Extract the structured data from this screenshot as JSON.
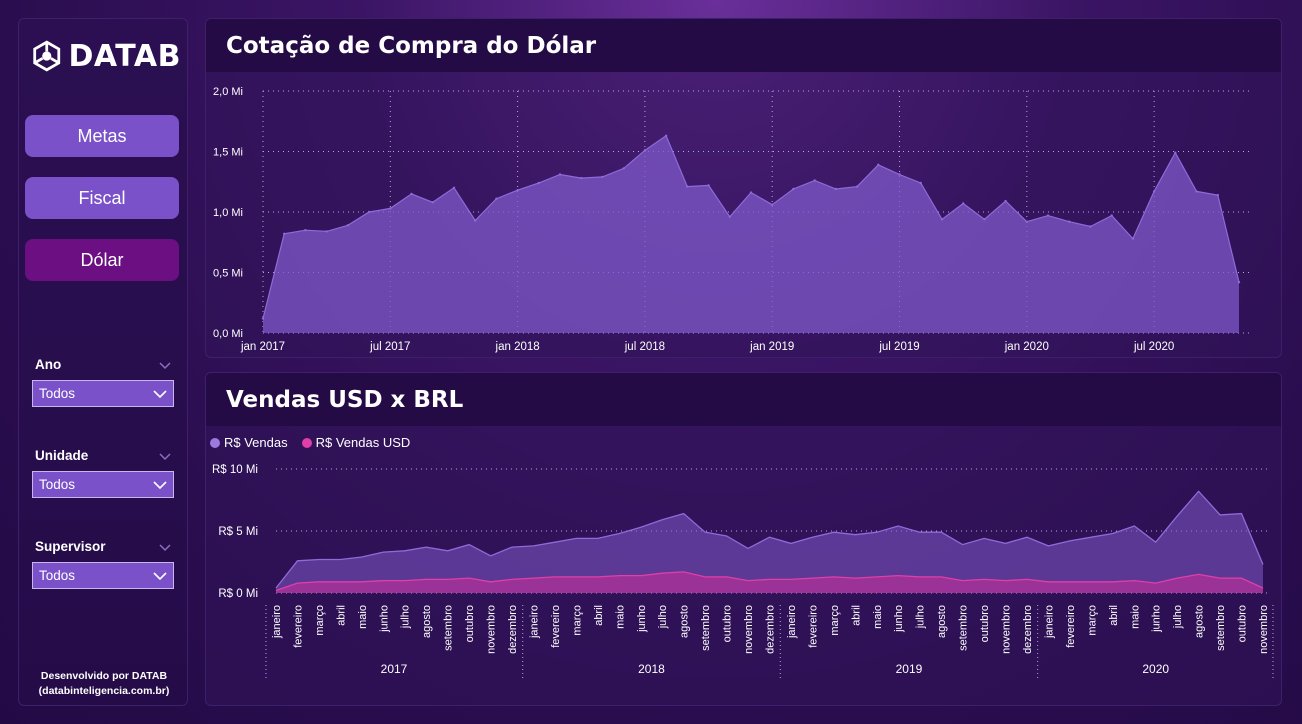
{
  "colors": {
    "area_rs": "#7f5ac9",
    "area_usd": "#c42f9a",
    "btn": "#7a51c9",
    "btn_active": "#6b0f82"
  },
  "logo": {
    "text": "DATAB"
  },
  "nav": {
    "metas": "Metas",
    "fiscal": "Fiscal",
    "dolar": "Dólar"
  },
  "filters": {
    "ano": {
      "label": "Ano",
      "value": "Todos"
    },
    "unidade": {
      "label": "Unidade",
      "value": "Todos"
    },
    "supervisor": {
      "label": "Supervisor",
      "value": "Todos"
    }
  },
  "credit": {
    "line1": "Desenvolvido por DATAB",
    "line2": "(databinteligencia.com.br)"
  },
  "chart1": {
    "title": "Cotação de Compra do Dólar"
  },
  "chart2": {
    "title": "Vendas USD x BRL"
  },
  "chart_data": [
    {
      "type": "area",
      "title": "Cotação de Compra do Dólar",
      "y_ticks": [
        "2,0 Mi",
        "1,5 Mi",
        "1,0 Mi",
        "0,5 Mi",
        "0,0 Mi"
      ],
      "ylim": [
        0,
        2.0
      ],
      "x_ticks": [
        "jan 2017",
        "jul 2017",
        "jan 2018",
        "jul 2018",
        "jan 2019",
        "jul 2019",
        "jan 2020",
        "jul 2020"
      ],
      "grid": true,
      "values": [
        0.12,
        0.82,
        0.85,
        0.84,
        0.89,
        1.0,
        1.03,
        1.15,
        1.08,
        1.2,
        0.93,
        1.11,
        1.18,
        1.24,
        1.31,
        1.28,
        1.29,
        1.36,
        1.51,
        1.63,
        1.21,
        1.22,
        0.96,
        1.16,
        1.06,
        1.19,
        1.26,
        1.19,
        1.21,
        1.39,
        1.31,
        1.24,
        0.94,
        1.07,
        0.94,
        1.09,
        0.92,
        0.97,
        0.92,
        0.88,
        0.97,
        0.78,
        1.17,
        1.49,
        1.17,
        1.14,
        0.42
      ]
    },
    {
      "type": "area",
      "title": "Vendas USD x BRL",
      "legend": {
        "position": "top-left",
        "entries": [
          "R$ Vendas",
          "R$ Vendas USD"
        ]
      },
      "y_ticks": [
        "R$ 10 Mi",
        "R$ 5 Mi",
        "R$ 0 Mi"
      ],
      "ylim": [
        0,
        10
      ],
      "grid": true,
      "years": [
        "2017",
        "2018",
        "2019",
        "2020"
      ],
      "categories": [
        "janeiro",
        "fevereiro",
        "março",
        "abril",
        "maio",
        "junho",
        "julho",
        "agosto",
        "setembro",
        "outubro",
        "novembro",
        "dezembro",
        "janeiro",
        "fevereiro",
        "março",
        "abril",
        "maio",
        "junho",
        "julho",
        "agosto",
        "setembro",
        "outubro",
        "novembro",
        "dezembro",
        "janeiro",
        "fevereiro",
        "março",
        "abril",
        "maio",
        "junho",
        "julho",
        "agosto",
        "setembro",
        "outubro",
        "novembro",
        "dezembro",
        "janeiro",
        "fevereiro",
        "março",
        "abril",
        "maio",
        "junho",
        "julho",
        "agosto",
        "setembro",
        "outubro",
        "novembro"
      ],
      "series": [
        {
          "name": "R$ Vendas",
          "values": [
            0.4,
            2.6,
            2.7,
            2.7,
            2.9,
            3.3,
            3.4,
            3.7,
            3.4,
            3.9,
            3.0,
            3.7,
            3.8,
            4.1,
            4.4,
            4.4,
            4.8,
            5.3,
            5.9,
            6.4,
            4.9,
            4.6,
            3.6,
            4.5,
            4.0,
            4.5,
            4.9,
            4.7,
            4.9,
            5.4,
            4.9,
            4.9,
            3.9,
            4.4,
            4.0,
            4.5,
            3.8,
            4.2,
            4.5,
            4.8,
            5.4,
            4.1,
            6.2,
            8.2,
            6.3,
            6.4,
            2.3
          ]
        },
        {
          "name": "R$ Vendas USD",
          "values": [
            0.2,
            0.8,
            0.9,
            0.9,
            0.9,
            1.0,
            1.0,
            1.1,
            1.1,
            1.2,
            0.9,
            1.1,
            1.2,
            1.3,
            1.3,
            1.3,
            1.4,
            1.4,
            1.6,
            1.7,
            1.3,
            1.3,
            1.0,
            1.1,
            1.1,
            1.2,
            1.3,
            1.2,
            1.3,
            1.4,
            1.3,
            1.3,
            1.0,
            1.1,
            1.0,
            1.1,
            0.9,
            0.9,
            0.9,
            0.9,
            1.0,
            0.8,
            1.2,
            1.5,
            1.2,
            1.2,
            0.4
          ]
        }
      ]
    }
  ]
}
